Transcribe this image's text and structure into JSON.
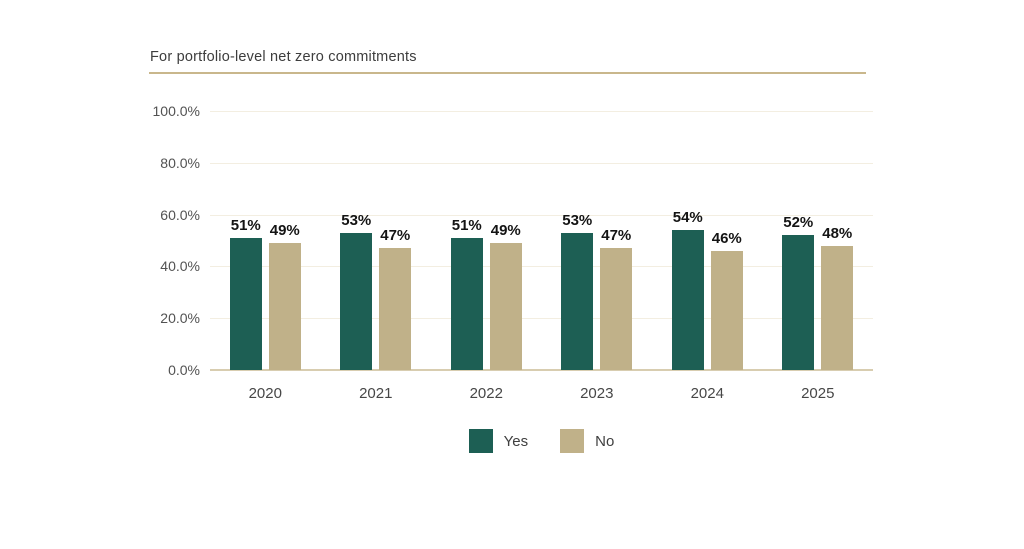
{
  "chart": {
    "title": "For portfolio-level net zero commitments"
  },
  "chart_data": {
    "type": "bar",
    "title": "For portfolio-level net zero commitments",
    "categories": [
      "2020",
      "2021",
      "2022",
      "2023",
      "2024",
      "2025"
    ],
    "series": [
      {
        "name": "Yes",
        "color": "#1d5f54",
        "values": [
          51,
          53,
          51,
          53,
          54,
          52
        ],
        "labels": [
          "51%",
          "53%",
          "51%",
          "53%",
          "54%",
          "52%"
        ]
      },
      {
        "name": "No",
        "color": "#c0b189",
        "values": [
          49,
          47,
          49,
          47,
          46,
          48
        ],
        "labels": [
          "49%",
          "47%",
          "49%",
          "47%",
          "46%",
          "48%"
        ]
      }
    ],
    "xlabel": "",
    "ylabel": "",
    "ylim": [
      0,
      100
    ],
    "yticks": [
      {
        "value": 100,
        "label": "100.0%"
      },
      {
        "value": 80,
        "label": "80.0%"
      },
      {
        "value": 60,
        "label": "60.0%"
      },
      {
        "value": 40,
        "label": "40.0%"
      },
      {
        "value": 20,
        "label": "20.0%"
      },
      {
        "value": 0,
        "label": "0.0%"
      }
    ],
    "grid": true,
    "legend_position": "bottom",
    "legend": [
      "Yes",
      "No"
    ]
  },
  "colors": {
    "yes": "#1d5f54",
    "no": "#c0b189",
    "gridline": "#f3eee1",
    "axis_line": "#d8cdb0",
    "title_rule": "#c9b78c",
    "title_text": "#3d3d3d",
    "tick_text": "#525252",
    "data_label_text": "#141414"
  }
}
